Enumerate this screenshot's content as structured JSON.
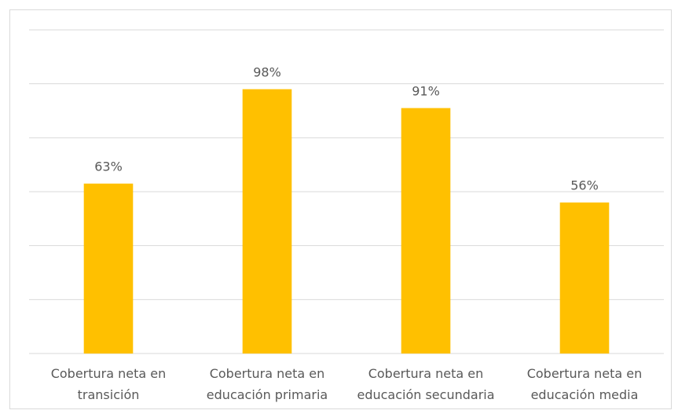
{
  "chart_data": {
    "type": "bar",
    "categories": [
      "Cobertura neta en transición",
      "Cobertura neta en educación primaria",
      "Cobertura neta en educación secundaria",
      "Cobertura neta en educación media"
    ],
    "values": [
      63,
      98,
      91,
      56
    ],
    "value_labels": [
      "63%",
      "98%",
      "91%",
      "56%"
    ],
    "color": "#ffc000",
    "ylim": [
      0,
      120
    ],
    "yticks": [
      0,
      20,
      40,
      60,
      80,
      100,
      120
    ],
    "grid": true
  }
}
